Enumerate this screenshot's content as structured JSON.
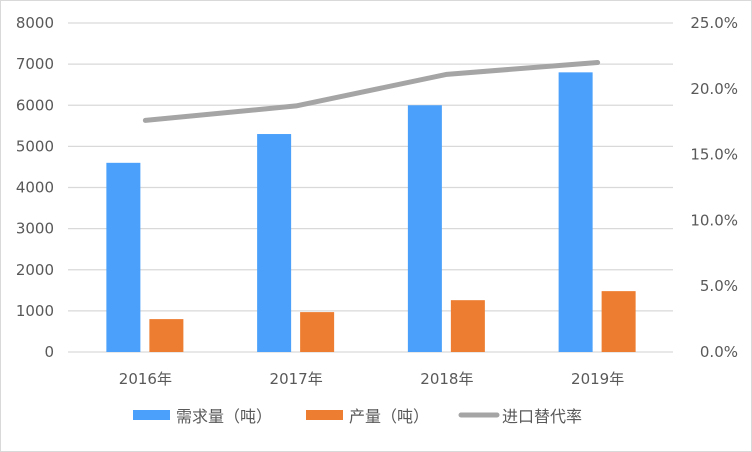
{
  "chart_data": {
    "type": "bar",
    "categories": [
      "2016年",
      "2017年",
      "2018年",
      "2019年"
    ],
    "series": [
      {
        "name": "需求量（吨）",
        "type": "bar",
        "axis": "left",
        "color": "#4aa0fa",
        "values": [
          4600,
          5300,
          6000,
          6800
        ]
      },
      {
        "name": "产量（吨）",
        "type": "bar",
        "axis": "left",
        "color": "#ed7d31",
        "values": [
          800,
          970,
          1260,
          1480
        ]
      },
      {
        "name": "进口替代率",
        "type": "line",
        "axis": "right",
        "color": "#a5a5a5",
        "values": [
          17.6,
          18.7,
          21.1,
          22.0
        ]
      }
    ],
    "left_axis": {
      "ylim": [
        0,
        8000
      ],
      "ticks": [
        "0",
        "1000",
        "2000",
        "3000",
        "4000",
        "5000",
        "6000",
        "7000",
        "8000"
      ]
    },
    "right_axis": {
      "ylim": [
        0,
        25
      ],
      "ticks": [
        "0.0%",
        "5.0%",
        "10.0%",
        "15.0%",
        "20.0%",
        "25.0%"
      ]
    },
    "grid": true,
    "legend": "bottom"
  }
}
